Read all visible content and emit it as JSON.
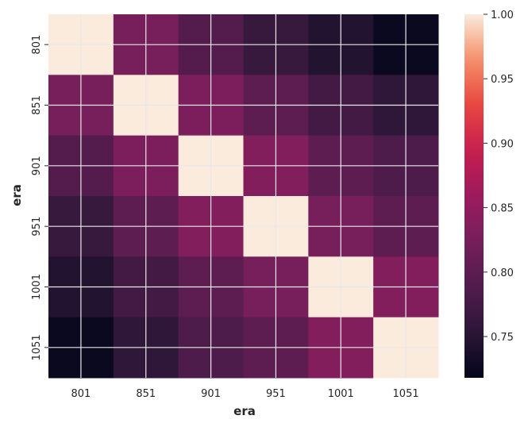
{
  "chart_data": {
    "type": "heatmap",
    "title": "",
    "xlabel": "era",
    "ylabel": "era",
    "categories": [
      "801",
      "851",
      "901",
      "951",
      "1001",
      "1051"
    ],
    "values": [
      [
        1.0,
        0.825,
        0.79,
        0.765,
        0.745,
        0.725
      ],
      [
        0.825,
        1.0,
        0.83,
        0.8,
        0.775,
        0.755
      ],
      [
        0.79,
        0.83,
        1.0,
        0.835,
        0.8,
        0.785
      ],
      [
        0.765,
        0.8,
        0.835,
        1.0,
        0.825,
        0.8
      ],
      [
        0.745,
        0.775,
        0.8,
        0.825,
        1.0,
        0.835
      ],
      [
        0.725,
        0.755,
        0.785,
        0.8,
        0.835,
        1.0
      ]
    ],
    "colorbar": {
      "min": 0.718,
      "max": 1.0,
      "ticks": [
        "0.75",
        "0.80",
        "0.85",
        "0.90",
        "0.95",
        "1.00"
      ],
      "colormap": "rocket"
    },
    "grid": true
  }
}
